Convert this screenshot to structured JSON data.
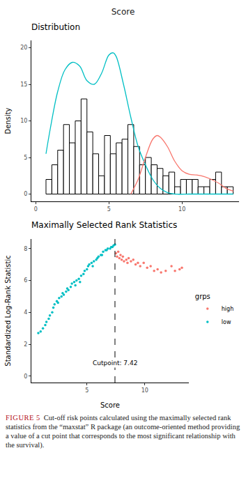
{
  "title": "Score",
  "caption": {
    "label": "FIGURE 5",
    "text": "Cut-off risk points calculated using the maximally selected rank statistics from the “maxstat” R package (an outcome-oriented method providing a value of a cut point that corresponds to the most significant relationship with the survival)."
  },
  "chart_data": [
    {
      "type": "histogram",
      "title": "Distribution",
      "y_label": "Density",
      "bins": [
        0.7,
        1.1,
        1.5,
        1.9,
        2.3,
        2.7,
        3.1,
        3.5,
        3.9,
        4.3,
        4.7,
        5.1,
        5.5,
        5.9,
        6.3,
        6.7,
        7.1,
        7.5,
        7.9,
        8.3,
        8.7,
        9.1,
        9.5,
        9.9,
        10.3,
        10.7,
        11.1,
        11.5,
        11.9,
        12.3,
        12.7,
        13.1,
        13.5
      ],
      "values": [
        2,
        4,
        6,
        9.5,
        7,
        10,
        13,
        8.5,
        5.5,
        2.5,
        8,
        5.5,
        7,
        7.5,
        9.5,
        6.5,
        4,
        5,
        4,
        3.5,
        2.5,
        3,
        1,
        2,
        2,
        2,
        1,
        1,
        2,
        3,
        1,
        1
      ],
      "color": "#ffffff",
      "series": [
        {
          "type": "line",
          "color": "#00bfc4",
          "x": [
            0.7,
            1.0,
            1.5,
            2.0,
            2.5,
            3.0,
            3.5,
            4.0,
            4.5,
            5.0,
            5.3,
            5.5,
            6.0,
            6.5,
            7.0,
            7.5,
            8.0,
            8.5,
            9.0,
            9.5,
            10.5,
            11.5,
            12.5,
            13.5
          ],
          "values": [
            5.5,
            9,
            14,
            17,
            18,
            17.5,
            15.5,
            15,
            16.5,
            19,
            19.3,
            18.8,
            15,
            10.5,
            6.5,
            4,
            2,
            0.8,
            0.2,
            0,
            0,
            0,
            0,
            0
          ]
        },
        {
          "type": "line",
          "color": "#f8766d",
          "x": [
            6.5,
            7.0,
            7.5,
            8.0,
            8.3,
            8.5,
            9.0,
            9.5,
            10.0,
            10.5,
            11.0,
            11.5,
            12.0,
            12.5,
            13.0,
            13.5
          ],
          "values": [
            0,
            2,
            5,
            7.5,
            8,
            7.8,
            6.5,
            4.5,
            3.2,
            2.7,
            2.6,
            2.4,
            2,
            1.5,
            0.8,
            0.4
          ]
        }
      ],
      "xlim": [
        -0.3,
        13.9
      ],
      "xticks": [
        0,
        5,
        10
      ],
      "ylim": [
        -1,
        21
      ],
      "yticks": [
        0,
        5,
        10,
        15,
        20
      ],
      "grid": false
    },
    {
      "type": "scatter",
      "title": "Maximally Selected Rank Statistics",
      "x_label": "Score",
      "y_label": "Standardized Log-Rank Statistic",
      "legend_title": "grps",
      "legend": "right",
      "marker": "circle",
      "series": [
        {
          "name": "high",
          "color": "#f8766d",
          "x": [
            7.5,
            7.6,
            7.7,
            7.8,
            7.9,
            8.0,
            8.1,
            8.2,
            8.4,
            8.5,
            8.6,
            8.8,
            9.0,
            9.2,
            9.4,
            9.6,
            9.9,
            10.2,
            10.5,
            10.8,
            11.1,
            11.4,
            11.8,
            12.3,
            12.6,
            13.0,
            13.2
          ],
          "values": [
            7.7,
            7.5,
            7.8,
            7.4,
            7.6,
            7.3,
            7.5,
            7.2,
            7.3,
            7.1,
            7.4,
            7.2,
            7.3,
            7.0,
            7.1,
            6.9,
            7.1,
            6.8,
            6.9,
            6.6,
            6.7,
            6.5,
            6.6,
            6.9,
            6.6,
            6.7,
            6.8
          ]
        },
        {
          "name": "low",
          "color": "#00bfc4",
          "x": [
            0.8,
            1.0,
            1.2,
            1.4,
            1.5,
            1.7,
            1.8,
            2.0,
            2.1,
            2.2,
            2.4,
            2.5,
            2.6,
            2.8,
            2.9,
            3.0,
            3.2,
            3.3,
            3.4,
            3.6,
            3.7,
            3.9,
            4.0,
            4.1,
            4.3,
            4.4,
            4.5,
            4.7,
            4.8,
            5.0,
            5.1,
            5.2,
            5.4,
            5.5,
            5.6,
            5.8,
            5.9,
            6.0,
            6.2,
            6.3,
            6.4,
            6.6,
            6.7,
            6.8,
            7.0,
            7.1,
            7.2,
            7.3,
            7.42
          ],
          "values": [
            2.7,
            2.8,
            3.0,
            3.2,
            3.4,
            3.6,
            3.8,
            4.0,
            4.3,
            4.5,
            4.7,
            4.6,
            4.9,
            5.0,
            5.2,
            5.1,
            5.3,
            5.5,
            5.4,
            5.6,
            5.8,
            5.9,
            5.7,
            6.0,
            6.1,
            5.9,
            6.3,
            6.4,
            6.6,
            6.7,
            6.9,
            7.0,
            7.1,
            6.9,
            7.2,
            7.3,
            7.4,
            7.5,
            7.6,
            7.6,
            7.8,
            7.9,
            7.9,
            8.0,
            8.0,
            8.1,
            8.1,
            8.2,
            8.25
          ]
        }
      ],
      "annotations": [
        {
          "text": "Cutpoint: 7.42",
          "x": 7.42,
          "line_style": "dashed"
        }
      ],
      "xlim": [
        0.2,
        13.8
      ],
      "xticks": [
        5,
        10
      ],
      "ylim": [
        -0.4,
        8.6
      ],
      "yticks": [
        0,
        2,
        4,
        6,
        8
      ],
      "grid": false
    }
  ]
}
